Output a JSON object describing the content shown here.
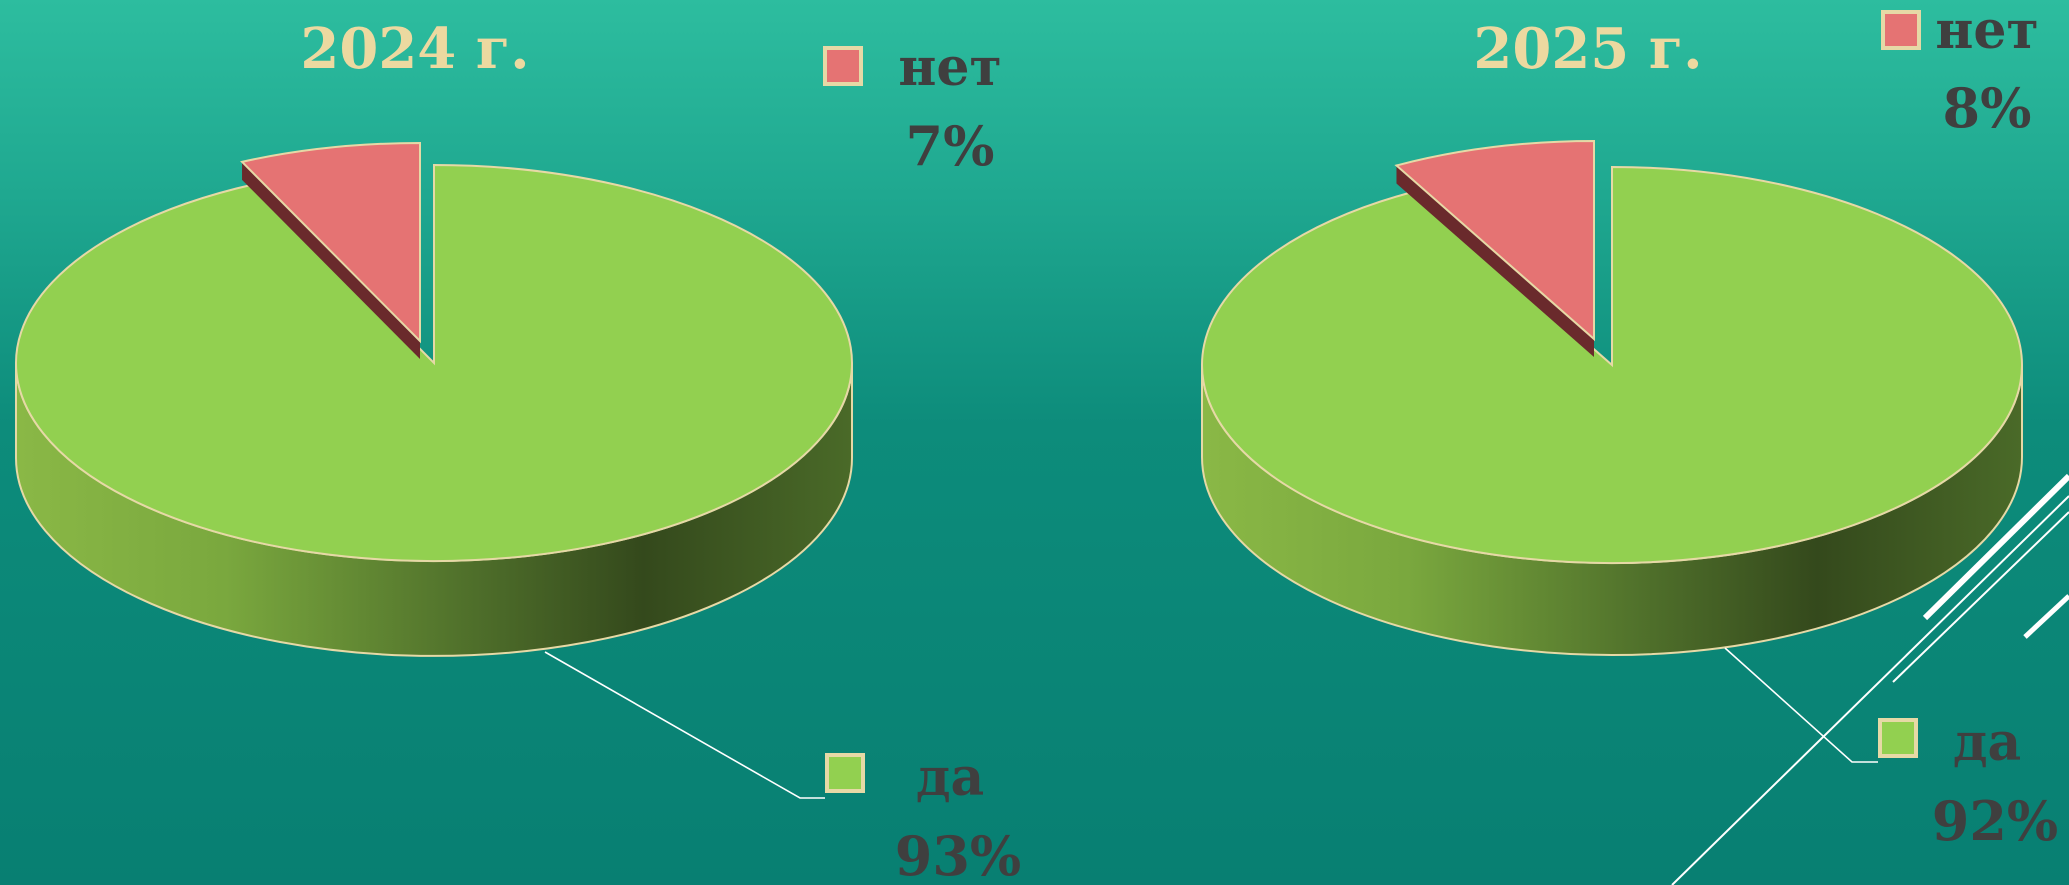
{
  "chart_data": [
    {
      "type": "pie",
      "title": "2024 г.",
      "slices": [
        {
          "label": "да",
          "value": 93,
          "value_label": "93%",
          "color": "#92d050"
        },
        {
          "label": "нет",
          "value": 7,
          "value_label": "7%",
          "color": "#e57373"
        }
      ]
    },
    {
      "type": "pie",
      "title": "2025 г.",
      "slices": [
        {
          "label": "да",
          "value": 92,
          "value_label": "92%",
          "color": "#92d050"
        },
        {
          "label": "нет",
          "value": 8,
          "value_label": "8%",
          "color": "#e57373"
        }
      ]
    }
  ],
  "colors": {
    "title": "#ecd9a0",
    "label_text": "#3f3f3f",
    "pie_outline": "#e6d9a6",
    "side_light": "#86b042",
    "side_dark": "#3a5220",
    "explode_side": "#6a2a2c",
    "leader_line": "#ffffff"
  }
}
